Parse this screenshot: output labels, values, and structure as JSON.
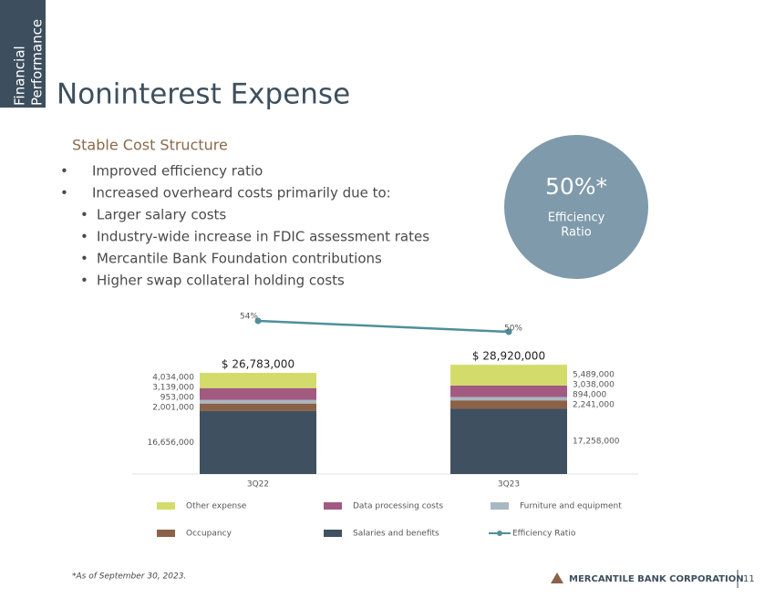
{
  "side_label": [
    "Financial",
    "Performance"
  ],
  "title": "Noninterest Expense",
  "subtitle": "Stable Cost Structure",
  "bullets": [
    "Improved efficiency ratio",
    "Increased overheard costs primarily due to:"
  ],
  "sub_bullets": [
    "Larger salary costs",
    "Industry-wide increase in FDIC assessment rates",
    "Mercantile Bank Foundation contributions",
    "Higher swap collateral holding costs"
  ],
  "callout": {
    "value": "50%*",
    "label": [
      "Efficiency",
      "Ratio"
    ]
  },
  "chart_data": {
    "type": "stacked_bar",
    "categories": [
      "3Q22",
      "3Q23"
    ],
    "series": [
      {
        "name": "Other expense",
        "color": "#d3dc6b",
        "values": [
          4034000,
          5489000
        ],
        "value_labels": [
          "4,034,000",
          "5,489,000"
        ]
      },
      {
        "name": "Data processing costs",
        "color": "#a25a80",
        "values": [
          3139000,
          3038000
        ],
        "value_labels": [
          "3,139,000",
          "3,038,000"
        ]
      },
      {
        "name": "Furniture and equipment",
        "color": "#a9b8c1",
        "values": [
          953000,
          894000
        ],
        "value_labels": [
          "953,000",
          "894,000"
        ]
      },
      {
        "name": "Occupancy",
        "color": "#8b6248",
        "values": [
          2001000,
          2241000
        ],
        "value_labels": [
          "2,001,000",
          "2,241,000"
        ]
      },
      {
        "name": "Salaries and benefits",
        "color": "#3f5160",
        "values": [
          16656000,
          17258000
        ],
        "value_labels": [
          "16,656,000",
          "17,258,000"
        ]
      }
    ],
    "totals": [
      26783000,
      28920000
    ],
    "total_labels": [
      "$ 26,783,000",
      "$ 28,920,000"
    ],
    "line": {
      "name": "Efficiency Ratio",
      "color": "#4f8f9b",
      "values": [
        54,
        50
      ],
      "value_labels": [
        "54%",
        "50%"
      ]
    }
  },
  "footer": {
    "note": "*As of September 30, 2023.",
    "company": "MERCANTILE BANK CORPORATION",
    "page": "11"
  }
}
